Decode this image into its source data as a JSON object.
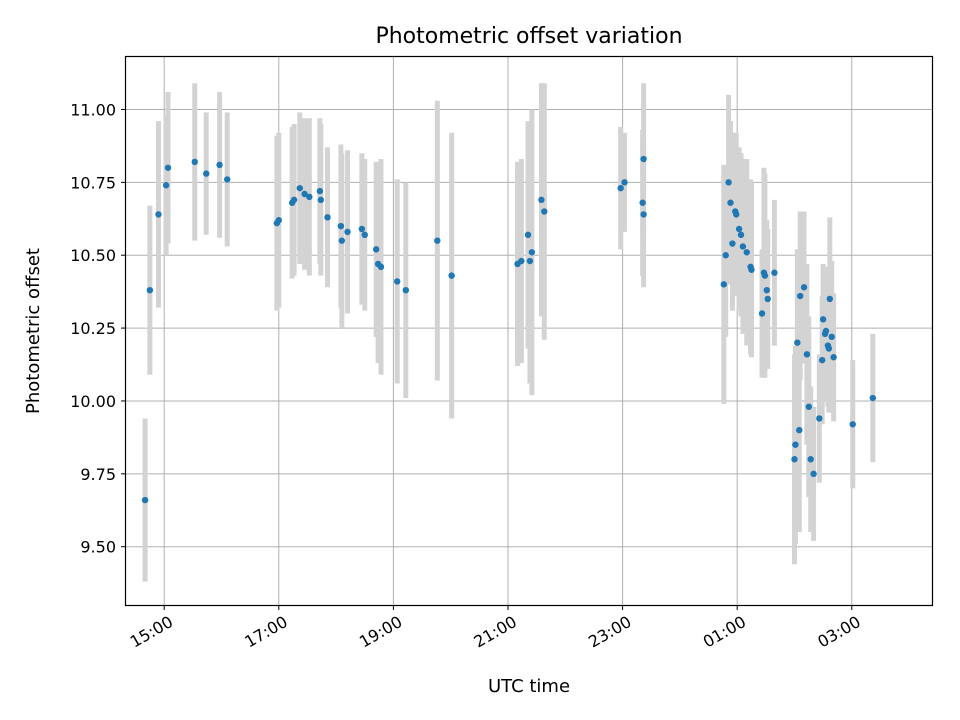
{
  "chart_data": {
    "type": "scatter",
    "title": "Photometric offset variation",
    "xlabel": "UTC time",
    "ylabel": "Photometric offset",
    "xlim": [
      "14:20",
      "04:24"
    ],
    "ylim": [
      9.3,
      11.18
    ],
    "grid": true,
    "x_ticks": [
      "15:00",
      "17:00",
      "19:00",
      "21:00",
      "23:00",
      "01:00",
      "03:00"
    ],
    "y_ticks": [
      9.5,
      9.75,
      10.0,
      10.25,
      10.5,
      10.75,
      11.0
    ],
    "y_tick_labels": [
      "9.50",
      "9.75",
      "10.00",
      "10.25",
      "10.50",
      "10.75",
      "11.00"
    ],
    "colors": {
      "marker": "#1f77b4",
      "errorbar": "#d3d3d3",
      "grid": "#b0b0b0"
    },
    "series": [
      {
        "x": [
          "14:40",
          "14:45",
          "14:54",
          "15:02",
          "15:04",
          "15:32",
          "15:44",
          "15:58",
          "16:06",
          "16:58",
          "17:00",
          "17:14",
          "17:16",
          "17:22",
          "17:27",
          "17:32",
          "17:43",
          "17:44",
          "17:51",
          "18:05",
          "18:06",
          "18:12",
          "18:27",
          "18:30",
          "18:42",
          "18:44",
          "18:47",
          "19:04",
          "19:13",
          "19:46",
          "20:01",
          "21:10",
          "21:14",
          "21:21",
          "21:23",
          "21:25",
          "21:35",
          "21:38",
          "22:58",
          "23:02",
          "23:21",
          "23:22",
          "23:22",
          "00:46",
          "00:48",
          "00:51",
          "00:53",
          "00:55",
          "00:58",
          "00:59",
          "01:02",
          "01:04",
          "01:06",
          "01:10",
          "01:14",
          "01:15",
          "01:26",
          "01:28",
          "01:29",
          "01:31",
          "01:32",
          "01:39",
          "02:00",
          "02:01",
          "02:03",
          "02:05",
          "02:06",
          "02:10",
          "02:13",
          "02:15",
          "02:17",
          "02:20",
          "02:26",
          "02:29",
          "02:30",
          "02:32",
          "02:33",
          "02:35",
          "02:36",
          "02:37",
          "02:39",
          "02:41",
          "03:01",
          "03:22"
        ],
        "y": [
          9.66,
          10.38,
          10.64,
          10.74,
          10.8,
          10.82,
          10.78,
          10.81,
          10.76,
          10.61,
          10.62,
          10.68,
          10.69,
          10.73,
          10.71,
          10.7,
          10.72,
          10.69,
          10.63,
          10.6,
          10.55,
          10.58,
          10.59,
          10.57,
          10.52,
          10.47,
          10.46,
          10.41,
          10.38,
          10.55,
          10.43,
          10.47,
          10.48,
          10.57,
          10.48,
          10.51,
          10.69,
          10.65,
          10.73,
          10.75,
          10.68,
          10.83,
          10.64,
          10.4,
          10.5,
          10.75,
          10.68,
          10.54,
          10.65,
          10.64,
          10.59,
          10.57,
          10.53,
          10.51,
          10.46,
          10.45,
          10.3,
          10.44,
          10.43,
          10.38,
          10.35,
          10.44,
          9.8,
          9.85,
          10.2,
          9.9,
          10.36,
          10.39,
          10.16,
          9.98,
          9.8,
          9.75,
          9.94,
          10.14,
          10.28,
          10.23,
          10.24,
          10.19,
          10.18,
          10.35,
          10.22,
          10.15,
          9.92,
          10.01
        ],
        "yerr": [
          0.28,
          0.29,
          0.32,
          0.24,
          0.26,
          0.27,
          0.21,
          0.25,
          0.23,
          0.3,
          0.3,
          0.26,
          0.26,
          0.26,
          0.26,
          0.27,
          0.25,
          0.26,
          0.24,
          0.28,
          0.3,
          0.28,
          0.26,
          0.26,
          0.3,
          0.34,
          0.37,
          0.35,
          0.37,
          0.48,
          0.49,
          0.35,
          0.35,
          0.39,
          0.42,
          0.49,
          0.4,
          0.44,
          0.21,
          0.17,
          0.25,
          0.26,
          0.25,
          0.41,
          0.28,
          0.3,
          0.28,
          0.23,
          0.27,
          0.28,
          0.28,
          0.28,
          0.3,
          0.32,
          0.3,
          0.3,
          0.22,
          0.36,
          0.35,
          0.24,
          0.24,
          0.25,
          0.36,
          0.34,
          0.32,
          0.35,
          0.29,
          0.26,
          0.31,
          0.31,
          0.25,
          0.23,
          0.22,
          0.22,
          0.19,
          0.23,
          0.22,
          0.21,
          0.22,
          0.28,
          0.26,
          0.22,
          0.22,
          0.22
        ]
      }
    ]
  }
}
